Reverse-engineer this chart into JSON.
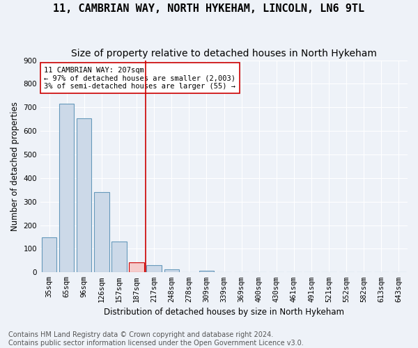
{
  "title": "11, CAMBRIAN WAY, NORTH HYKEHAM, LINCOLN, LN6 9TL",
  "subtitle": "Size of property relative to detached houses in North Hykeham",
  "xlabel": "Distribution of detached houses by size in North Hykeham",
  "ylabel": "Number of detached properties",
  "footer_line1": "Contains HM Land Registry data © Crown copyright and database right 2024.",
  "footer_line2": "Contains public sector information licensed under the Open Government Licence v3.0.",
  "bins": [
    "35sqm",
    "65sqm",
    "96sqm",
    "126sqm",
    "157sqm",
    "187sqm",
    "217sqm",
    "248sqm",
    "278sqm",
    "309sqm",
    "339sqm",
    "369sqm",
    "400sqm",
    "430sqm",
    "461sqm",
    "491sqm",
    "521sqm",
    "552sqm",
    "582sqm",
    "613sqm",
    "643sqm"
  ],
  "values": [
    150,
    715,
    655,
    340,
    130,
    42,
    30,
    12,
    0,
    8,
    0,
    0,
    0,
    0,
    0,
    0,
    0,
    0,
    0,
    0,
    0
  ],
  "bar_color": "#ccd9e8",
  "bar_edge_color": "#6699bb",
  "highlight_bin_index": 5,
  "highlight_bar_color": "#f5cccc",
  "vline_color": "#cc0000",
  "annotation_line1": "11 CAMBRIAN WAY: 207sqm",
  "annotation_line2": "← 97% of detached houses are smaller (2,003)",
  "annotation_line3": "3% of semi-detached houses are larger (55) →",
  "annotation_box_color": "#ffffff",
  "annotation_box_edge_color": "#cc0000",
  "ylim": [
    0,
    900
  ],
  "yticks": [
    0,
    100,
    200,
    300,
    400,
    500,
    600,
    700,
    800,
    900
  ],
  "background_color": "#eef2f8",
  "grid_color": "#ffffff",
  "title_fontsize": 11,
  "subtitle_fontsize": 10,
  "axis_label_fontsize": 8.5,
  "tick_fontsize": 7.5,
  "footer_fontsize": 7.0
}
